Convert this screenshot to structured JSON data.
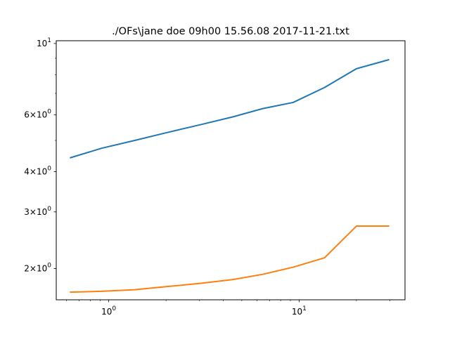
{
  "figure": {
    "title": "./OFs\\jane doe 09h00 15.56.08 2017-11-21.txt"
  },
  "chart_data": {
    "type": "line",
    "title": "./OFs\\jane doe 09h00 15.56.08 2017-11-21.txt",
    "xlabel": "",
    "ylabel": "",
    "xscale": "log",
    "yscale": "log",
    "xlim": [
      0.53,
      36
    ],
    "ylim": [
      1.6,
      10.2
    ],
    "grid": false,
    "legend": "none",
    "x_ticks": [
      {
        "value": 1,
        "label": "10^0"
      },
      {
        "value": 10,
        "label": "10^1"
      }
    ],
    "y_ticks": [
      {
        "value": 10,
        "label": "10^1"
      },
      {
        "value": 6,
        "label": "6×10^0"
      },
      {
        "value": 4,
        "label": "4×10^0"
      },
      {
        "value": 3,
        "label": "3×10^0"
      },
      {
        "value": 2,
        "label": "2×10^0"
      }
    ],
    "series": [
      {
        "color": "#1f77b4",
        "x": [
          0.63,
          0.92,
          1.37,
          2.05,
          3.05,
          4.5,
          6.45,
          9.3,
          13.6,
          20.0,
          29.5
        ],
        "y": [
          4.42,
          4.73,
          5.0,
          5.3,
          5.6,
          5.92,
          6.28,
          6.56,
          7.3,
          8.35,
          8.9
        ]
      },
      {
        "color": "#ff7f0e",
        "x": [
          0.63,
          0.92,
          1.37,
          2.05,
          3.05,
          4.5,
          6.45,
          9.3,
          13.6,
          20.0,
          29.5
        ],
        "y": [
          1.69,
          1.7,
          1.72,
          1.76,
          1.8,
          1.85,
          1.92,
          2.02,
          2.16,
          2.71,
          2.71
        ]
      }
    ]
  }
}
